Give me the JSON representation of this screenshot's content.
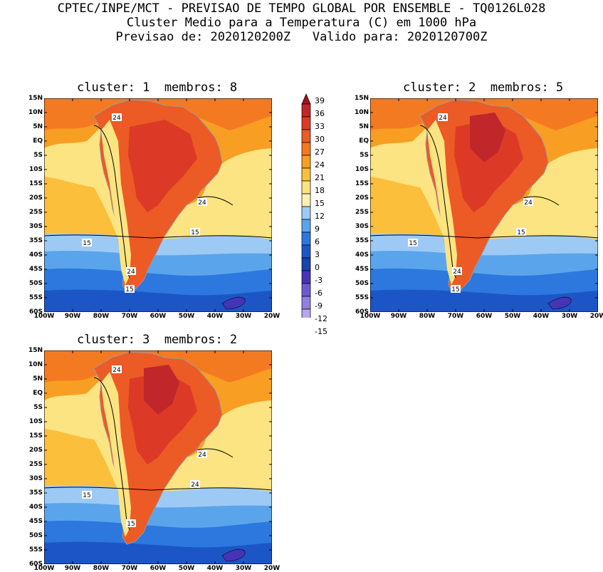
{
  "header": {
    "line1": "CPTEC/INPE/MCT - PREVISAO DE TEMPO GLOBAL POR ENSEMBLE - TQ0126L028",
    "line2": "Cluster Medio para a Temperatura (C) em 1000 hPa",
    "line3": "Previsao de: 2020120200Z   Valido para: 2020120700Z"
  },
  "panels": [
    {
      "title": "cluster: 1  membros: 8",
      "contour_labels": [
        "24",
        "24",
        "15",
        "15",
        "24",
        "15"
      ]
    },
    {
      "title": "cluster: 2  membros: 5",
      "contour_labels": [
        "24",
        "24",
        "15",
        "15",
        "24",
        "15"
      ]
    },
    {
      "title": "cluster: 3  membros: 2",
      "contour_labels": [
        "24",
        "24",
        "15",
        "24",
        "15"
      ]
    }
  ],
  "lat_labels": [
    "15N",
    "10N",
    "5N",
    "EQ",
    "5S",
    "10S",
    "15S",
    "20S",
    "25S",
    "30S",
    "35S",
    "40S",
    "45S",
    "50S",
    "55S",
    "60S"
  ],
  "lon_labels": [
    "100W",
    "90W",
    "80W",
    "70W",
    "60W",
    "50W",
    "40W",
    "30W",
    "20W"
  ],
  "colorbar": {
    "labels": [
      "39",
      "36",
      "33",
      "30",
      "27",
      "24",
      "21",
      "18",
      "15",
      "12",
      "9",
      "6",
      "3",
      "0",
      "-3",
      "-6",
      "-9",
      "-12",
      "-15"
    ],
    "colors": [
      "#a0141e",
      "#c0262a",
      "#dc3a26",
      "#ec5a26",
      "#f47a22",
      "#f89e22",
      "#fbbf3c",
      "#fde482",
      "#fdf0b0",
      "#9ccaf4",
      "#5aa4ec",
      "#2c78de",
      "#1c56c6",
      "#1844ac",
      "#4634b8",
      "#6e5ad0",
      "#9280e0",
      "#b4a6ec",
      "#d2c8f4"
    ]
  }
}
